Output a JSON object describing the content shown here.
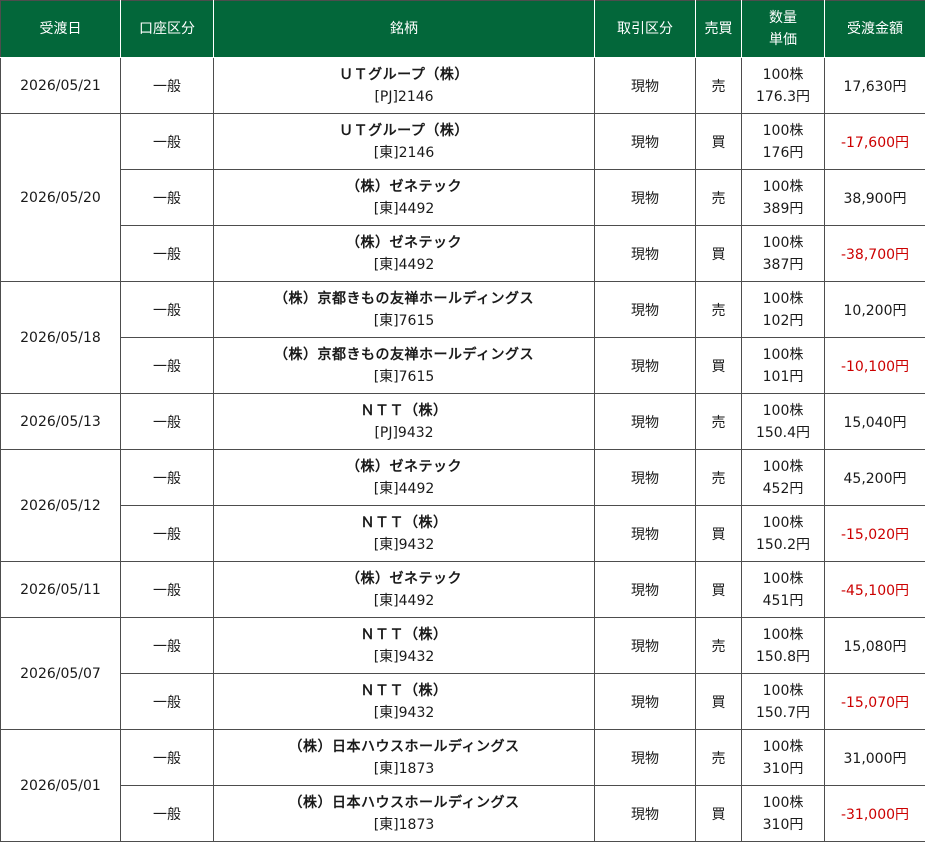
{
  "header": {
    "date": "受渡日",
    "account": "口座区分",
    "name": "銘柄",
    "trade_type": "取引区分",
    "side": "売買",
    "qty": "数量",
    "price": "単価",
    "amount": "受渡金額"
  },
  "groups": [
    {
      "date": "2026/05/21",
      "rows": [
        {
          "account": "一般",
          "name": "ＵＴグループ（株）",
          "code": "[PJ]2146",
          "type": "現物",
          "side": "売",
          "qty": "100株",
          "price": "176.3円",
          "amount": "17,630円",
          "negative": false
        }
      ]
    },
    {
      "date": "2026/05/20",
      "rows": [
        {
          "account": "一般",
          "name": "ＵＴグループ（株）",
          "code": "[東]2146",
          "type": "現物",
          "side": "買",
          "qty": "100株",
          "price": "176円",
          "amount": "-17,600円",
          "negative": true
        },
        {
          "account": "一般",
          "name": "（株）ゼネテック",
          "code": "[東]4492",
          "type": "現物",
          "side": "売",
          "qty": "100株",
          "price": "389円",
          "amount": "38,900円",
          "negative": false
        },
        {
          "account": "一般",
          "name": "（株）ゼネテック",
          "code": "[東]4492",
          "type": "現物",
          "side": "買",
          "qty": "100株",
          "price": "387円",
          "amount": "-38,700円",
          "negative": true
        }
      ]
    },
    {
      "date": "2026/05/18",
      "rows": [
        {
          "account": "一般",
          "name": "（株）京都きもの友禅ホールディングス",
          "code": "[東]7615",
          "type": "現物",
          "side": "売",
          "qty": "100株",
          "price": "102円",
          "amount": "10,200円",
          "negative": false
        },
        {
          "account": "一般",
          "name": "（株）京都きもの友禅ホールディングス",
          "code": "[東]7615",
          "type": "現物",
          "side": "買",
          "qty": "100株",
          "price": "101円",
          "amount": "-10,100円",
          "negative": true
        }
      ]
    },
    {
      "date": "2026/05/13",
      "rows": [
        {
          "account": "一般",
          "name": "ＮＴＴ（株）",
          "code": "[PJ]9432",
          "type": "現物",
          "side": "売",
          "qty": "100株",
          "price": "150.4円",
          "amount": "15,040円",
          "negative": false
        }
      ]
    },
    {
      "date": "2026/05/12",
      "rows": [
        {
          "account": "一般",
          "name": "（株）ゼネテック",
          "code": "[東]4492",
          "type": "現物",
          "side": "売",
          "qty": "100株",
          "price": "452円",
          "amount": "45,200円",
          "negative": false
        },
        {
          "account": "一般",
          "name": "ＮＴＴ（株）",
          "code": "[東]9432",
          "type": "現物",
          "side": "買",
          "qty": "100株",
          "price": "150.2円",
          "amount": "-15,020円",
          "negative": true
        }
      ]
    },
    {
      "date": "2026/05/11",
      "rows": [
        {
          "account": "一般",
          "name": "（株）ゼネテック",
          "code": "[東]4492",
          "type": "現物",
          "side": "買",
          "qty": "100株",
          "price": "451円",
          "amount": "-45,100円",
          "negative": true
        }
      ]
    },
    {
      "date": "2026/05/07",
      "rows": [
        {
          "account": "一般",
          "name": "ＮＴＴ（株）",
          "code": "[東]9432",
          "type": "現物",
          "side": "売",
          "qty": "100株",
          "price": "150.8円",
          "amount": "15,080円",
          "negative": false
        },
        {
          "account": "一般",
          "name": "ＮＴＴ（株）",
          "code": "[東]9432",
          "type": "現物",
          "side": "買",
          "qty": "100株",
          "price": "150.7円",
          "amount": "-15,070円",
          "negative": true
        }
      ]
    },
    {
      "date": "2026/05/01",
      "rows": [
        {
          "account": "一般",
          "name": "（株）日本ハウスホールディングス",
          "code": "[東]1873",
          "type": "現物",
          "side": "売",
          "qty": "100株",
          "price": "310円",
          "amount": "31,000円",
          "negative": false
        },
        {
          "account": "一般",
          "name": "（株）日本ハウスホールディングス",
          "code": "[東]1873",
          "type": "現物",
          "side": "買",
          "qty": "100株",
          "price": "310円",
          "amount": "-31,000円",
          "negative": true
        }
      ]
    }
  ],
  "colors": {
    "header_bg": "#03673a",
    "negative": "#cc0000"
  }
}
